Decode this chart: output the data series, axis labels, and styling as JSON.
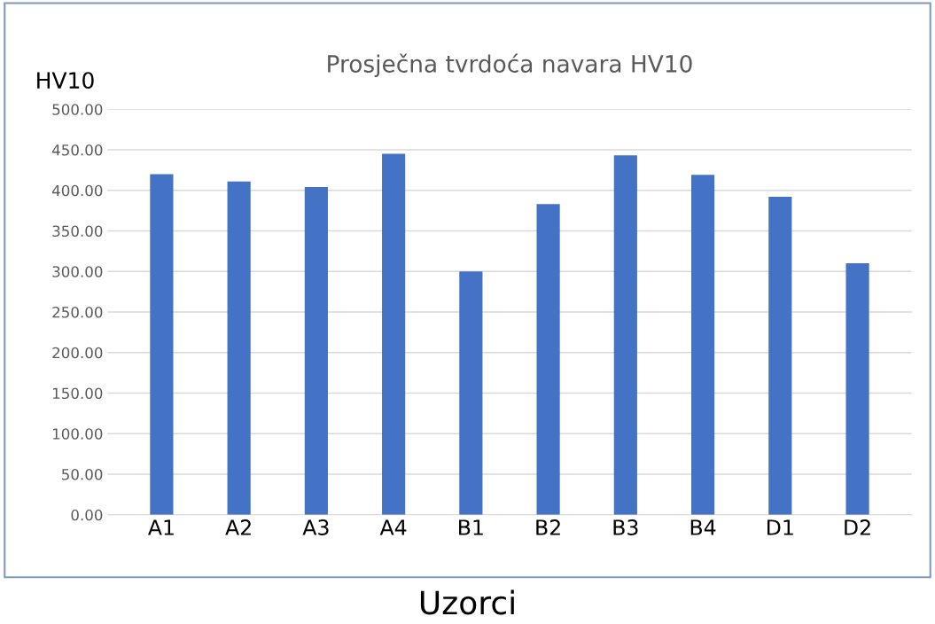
{
  "chart_data": {
    "type": "bar",
    "title": "Prosječna tvrdoća navara HV10",
    "ylabel": "HV10",
    "xlabel": "Uzorci",
    "categories": [
      "A1",
      "A2",
      "A3",
      "A4",
      "B1",
      "B2",
      "B3",
      "B4",
      "D1",
      "D2"
    ],
    "values": [
      420,
      411,
      404,
      445,
      300,
      383,
      443,
      419,
      392,
      310
    ],
    "color": "#4472c4",
    "ylim": [
      0,
      500
    ],
    "yticks": [
      {
        "value": 0,
        "label": "0.00"
      },
      {
        "value": 50,
        "label": "50.00"
      },
      {
        "value": 100,
        "label": "100.00"
      },
      {
        "value": 150,
        "label": "150.00"
      },
      {
        "value": 200,
        "label": "200.00"
      },
      {
        "value": 250,
        "label": "250.00"
      },
      {
        "value": 300,
        "label": "300.00"
      },
      {
        "value": 350,
        "label": "350.00"
      },
      {
        "value": 400,
        "label": "400.00"
      },
      {
        "value": 450,
        "label": "450.00"
      },
      {
        "value": 500,
        "label": "500.00"
      }
    ],
    "grid": "y"
  }
}
